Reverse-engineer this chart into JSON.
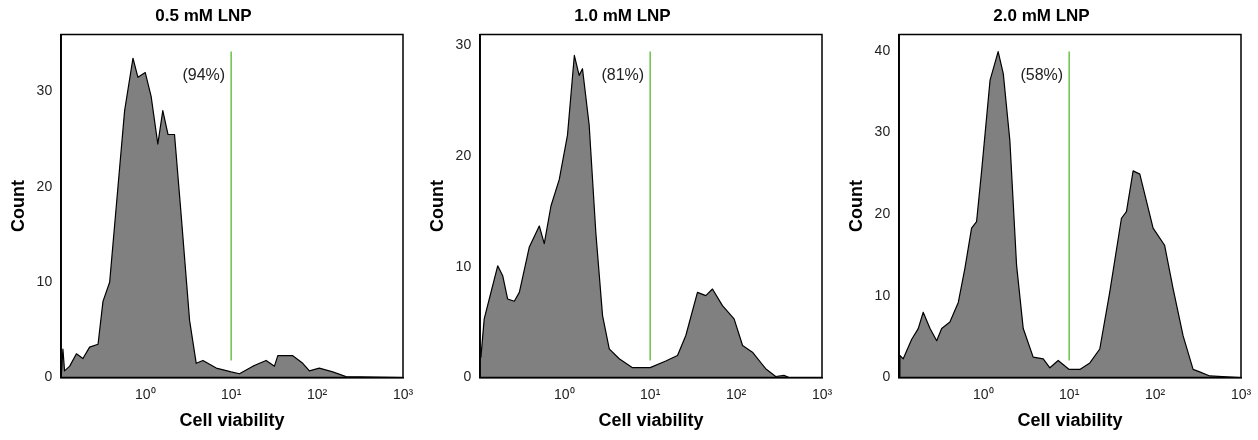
{
  "chart_data": [
    {
      "type": "area",
      "title": "0.5 mM LNP",
      "xlabel": "Cell viability",
      "ylabel": "Count",
      "log": "x",
      "grid": false,
      "legend": false,
      "marker": "none",
      "xlim": [
        0.105,
        1000
      ],
      "xticks": [
        {
          "value": 1,
          "label": "10⁰"
        },
        {
          "value": 10,
          "label": "10¹"
        },
        {
          "value": 100,
          "label": "10²"
        },
        {
          "value": 1000,
          "label": "10³"
        }
      ],
      "ylim": [
        0,
        36
      ],
      "yticks": [
        0,
        10,
        20,
        30
      ],
      "ref_lines": [
        {
          "axis": "x",
          "value": 10,
          "color": "#6cc24a"
        }
      ],
      "annotations": [
        "(94%)"
      ],
      "series": [
        {
          "color": "#808080",
          "x": [
            0.105,
            0.11,
            0.115,
            0.132,
            0.158,
            0.188,
            0.225,
            0.282,
            0.322,
            0.385,
            0.481,
            0.575,
            0.719,
            0.822,
            1.0,
            1.17,
            1.4,
            1.6,
            1.84,
            2.19,
            2.62,
            3.28,
            3.92,
            4.69,
            6.7,
            10,
            12.5,
            17.9,
            25.5,
            31.9,
            34.9,
            52.1,
            68.1,
            81.4,
            106,
            152,
            217,
            991
          ],
          "values": [
            0,
            3.0,
            0.7,
            1.2,
            2.5,
            2.0,
            3.2,
            3.5,
            8,
            10,
            20,
            28,
            33.5,
            31.5,
            32,
            29.5,
            24.5,
            28,
            25.5,
            25.5,
            17,
            6,
            1.5,
            1.8,
            1.0,
            0.6,
            0.4,
            1.2,
            1.8,
            1.2,
            2.3,
            2.3,
            1.5,
            0.7,
            1.0,
            0.6,
            0.1,
            0
          ]
        }
      ]
    },
    {
      "type": "area",
      "title": "1.0 mM LNP",
      "xlabel": "Cell viability",
      "ylabel": "Count",
      "log": "x",
      "grid": false,
      "legend": false,
      "marker": "none",
      "xlim": [
        0.105,
        1000
      ],
      "xticks": [
        {
          "value": 1,
          "label": "10⁰"
        },
        {
          "value": 10,
          "label": "10¹"
        },
        {
          "value": 100,
          "label": "10²"
        },
        {
          "value": 1000,
          "label": "10³"
        }
      ],
      "ylim": [
        0,
        31
      ],
      "yticks": [
        0,
        10,
        20,
        30
      ],
      "ref_lines": [
        {
          "axis": "x",
          "value": 10,
          "color": "#6cc24a"
        }
      ],
      "annotations": [
        "(81%)"
      ],
      "series": [
        {
          "color": "#808080",
          "x": [
            0.107,
            0.117,
            0.134,
            0.168,
            0.192,
            0.219,
            0.262,
            0.3,
            0.392,
            0.512,
            0.585,
            0.7,
            0.875,
            1.09,
            1.31,
            1.49,
            1.63,
            1.95,
            2.33,
            2.79,
            3.34,
            4.36,
            6.23,
            10,
            15.2,
            20.8,
            26.0,
            35.5,
            44.4,
            53.1,
            69.4,
            94.8,
            119,
            155,
            221,
            289,
            361,
            413,
            964
          ],
          "values": [
            1.8,
            5.3,
            7.1,
            10.1,
            9.2,
            7.1,
            6.9,
            7.7,
            11.8,
            13.7,
            12.1,
            15.5,
            17.9,
            21.9,
            29.1,
            27.3,
            27.9,
            22.8,
            13.1,
            5.6,
            2.6,
            1.7,
            0.9,
            0.9,
            1.5,
            2.0,
            3.8,
            7.7,
            7.4,
            8.0,
            6.5,
            5.3,
            2.9,
            2.3,
            0.8,
            0.1,
            0.2,
            0,
            0
          ]
        }
      ]
    },
    {
      "type": "area",
      "title": "2.0 mM LNP",
      "xlabel": "Cell viability",
      "ylabel": "Count",
      "log": "x",
      "grid": false,
      "legend": false,
      "marker": "none",
      "xlim": [
        0.105,
        1000
      ],
      "xticks": [
        {
          "value": 1,
          "label": "10⁰"
        },
        {
          "value": 10,
          "label": "10¹"
        },
        {
          "value": 100,
          "label": "10²"
        },
        {
          "value": 1000,
          "label": "10³"
        }
      ],
      "ylim": [
        0,
        42
      ],
      "yticks": [
        0,
        10,
        20,
        30,
        40
      ],
      "ref_lines": [
        {
          "axis": "x",
          "value": 10,
          "color": "#6cc24a"
        }
      ],
      "annotations": [
        "(58%)"
      ],
      "series": [
        {
          "color": "#808080",
          "x": [
            0.105,
            0.107,
            0.117,
            0.147,
            0.175,
            0.2,
            0.24,
            0.287,
            0.328,
            0.409,
            0.512,
            0.612,
            0.731,
            0.836,
            0.957,
            1.2,
            1.49,
            1.71,
            2.04,
            2.44,
            2.92,
            3.81,
            4.99,
            5.96,
            7.45,
            10,
            13.3,
            17.4,
            22.7,
            29.7,
            40.6,
            46.4,
            55.5,
            66.4,
            94.8,
            129,
            162,
            212,
            277,
            330,
            433,
            966
          ],
          "values": [
            0,
            2.7,
            2.3,
            4.7,
            6.0,
            8.0,
            6.0,
            4.5,
            6.0,
            6.8,
            9.2,
            13.4,
            18.3,
            19.1,
            25.3,
            36.4,
            39.9,
            37.2,
            29.0,
            13.8,
            6.0,
            2.5,
            2.3,
            1.2,
            2.1,
            1.0,
            1.0,
            1.8,
            3.5,
            10.5,
            19.5,
            20.3,
            25.3,
            24.9,
            18.3,
            16.2,
            10.9,
            5.1,
            1.0,
            0.7,
            0.2,
            0
          ]
        }
      ]
    }
  ]
}
